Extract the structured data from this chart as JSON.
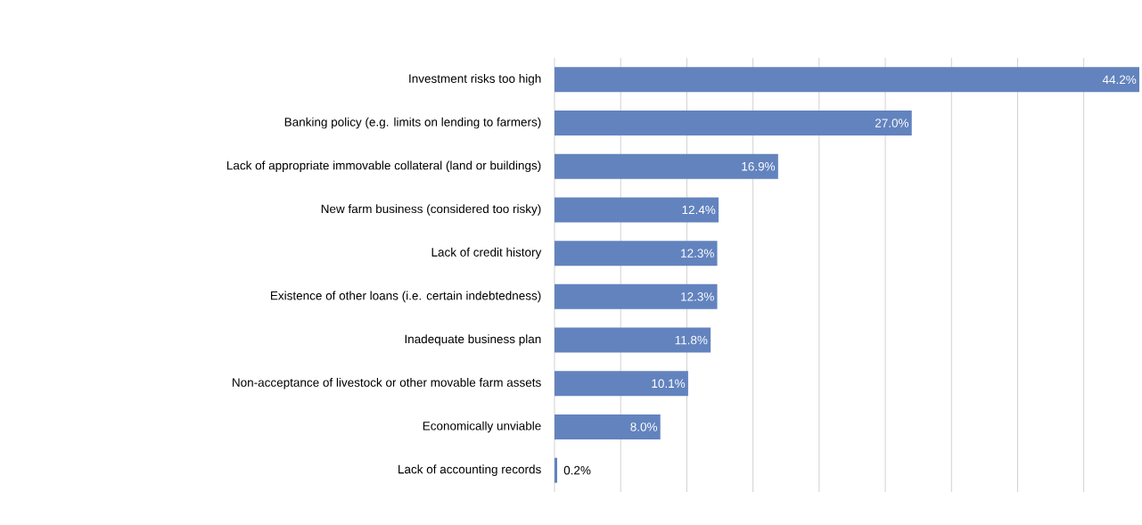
{
  "chart_data": {
    "type": "bar",
    "orientation": "horizontal",
    "categories": [
      "Investment risks too high",
      "Banking policy (e.g. limits on lending to farmers)",
      "Lack of appropriate immovable collateral (land or buildings)",
      "New farm business (considered too risky)",
      "Lack of credit history",
      "Existence of other loans (i.e. certain indebtedness)",
      "Inadequate business plan",
      "Non-acceptance of livestock or other movable farm assets",
      "Economically unviable",
      "Lack of accounting records"
    ],
    "values": [
      44.2,
      27.0,
      16.9,
      12.4,
      12.3,
      12.3,
      11.8,
      10.1,
      8.0,
      0.2
    ],
    "value_labels": [
      "44.2%",
      "27.0%",
      "16.9%",
      "12.4%",
      "12.3%",
      "12.3%",
      "11.8%",
      "10.1%",
      "8.0%",
      "0.2%"
    ],
    "color": "#6283be",
    "xlim": [
      0,
      44.2
    ],
    "xticks": [
      {
        "value": 0,
        "label": null
      },
      {
        "value": 5,
        "label": null
      },
      {
        "value": 10,
        "label": null
      },
      {
        "value": 15,
        "label": null
      },
      {
        "value": 20,
        "label": null
      },
      {
        "value": 25,
        "label": null
      },
      {
        "value": 30,
        "label": null
      },
      {
        "value": 35,
        "label": null
      },
      {
        "value": 40,
        "label": null
      }
    ],
    "tick_labels": "y",
    "grid": "x"
  }
}
